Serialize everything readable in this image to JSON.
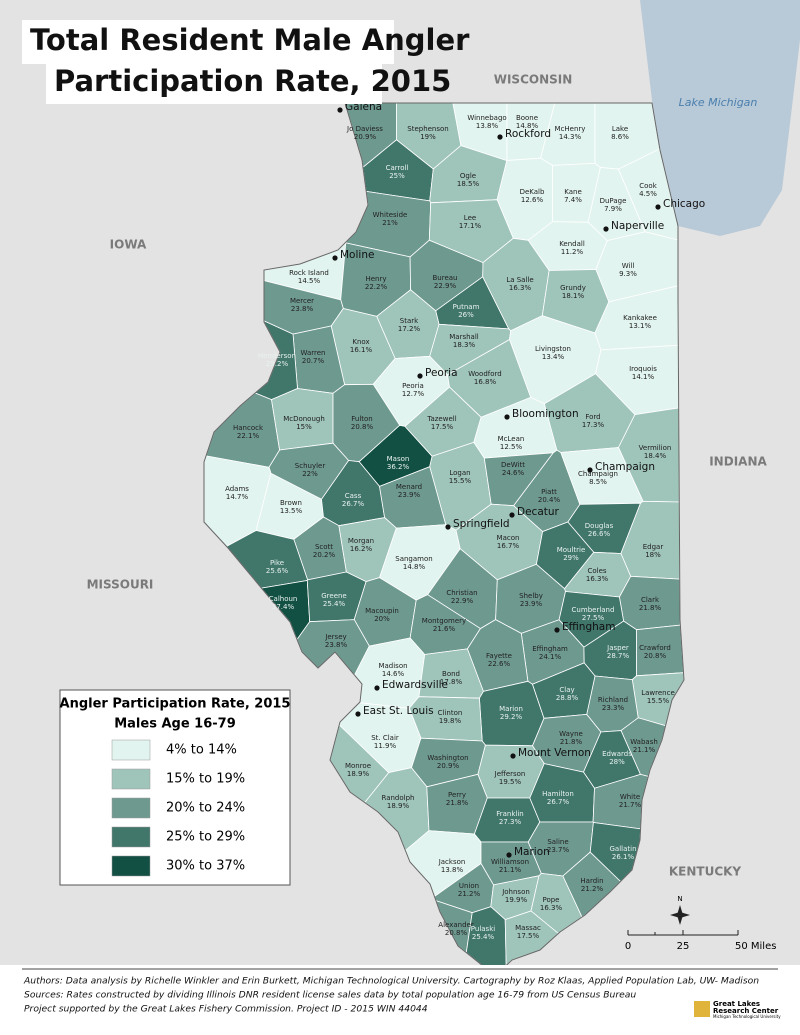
{
  "title": [
    "Total Resident Male Angler",
    "Participation Rate, 2015"
  ],
  "water": "Lake Michigan",
  "states": [
    "WISCONSIN",
    "IOWA",
    "INDIANA",
    "MISSOURI",
    "KENTUCKY"
  ],
  "legend": {
    "title": "Angler Participation Rate, 2015",
    "subtitle": "Males Age 16-79",
    "items": [
      {
        "label": "4% to 14%",
        "color": "#e2f4ef"
      },
      {
        "label": "15% to 19%",
        "color": "#9fc4ba"
      },
      {
        "label": "20% to 24%",
        "color": "#6e998f"
      },
      {
        "label": "25% to 29%",
        "color": "#41766b"
      },
      {
        "label": "30% to 37%",
        "color": "#135044"
      }
    ]
  },
  "counties": [
    {
      "name": "Jo Daviess",
      "rate": "20.9%"
    },
    {
      "name": "Stephenson",
      "rate": "19%"
    },
    {
      "name": "Winnebago",
      "rate": "13.8%"
    },
    {
      "name": "Boone",
      "rate": "14.8%"
    },
    {
      "name": "McHenry",
      "rate": "14.3%"
    },
    {
      "name": "Lake",
      "rate": "8.6%"
    },
    {
      "name": "Carroll",
      "rate": "25%"
    },
    {
      "name": "Ogle",
      "rate": "18.5%"
    },
    {
      "name": "DeKalb",
      "rate": "12.6%"
    },
    {
      "name": "Kane",
      "rate": "7.4%"
    },
    {
      "name": "DuPage",
      "rate": "7.9%"
    },
    {
      "name": "Cook",
      "rate": "4.5%"
    },
    {
      "name": "Whiteside",
      "rate": "21%"
    },
    {
      "name": "Lee",
      "rate": "17.1%"
    },
    {
      "name": "Kendall",
      "rate": "11.2%"
    },
    {
      "name": "Will",
      "rate": "9.3%"
    },
    {
      "name": "Rock Island",
      "rate": "14.5%"
    },
    {
      "name": "Henry",
      "rate": "22.2%"
    },
    {
      "name": "Bureau",
      "rate": "22.9%"
    },
    {
      "name": "La Salle",
      "rate": "16.3%"
    },
    {
      "name": "Grundy",
      "rate": "18.1%"
    },
    {
      "name": "Kankakee",
      "rate": "13.1%"
    },
    {
      "name": "Mercer",
      "rate": "23.8%"
    },
    {
      "name": "Putnam",
      "rate": "26%"
    },
    {
      "name": "Stark",
      "rate": "17.2%"
    },
    {
      "name": "Marshall",
      "rate": "18.3%"
    },
    {
      "name": "Knox",
      "rate": "16.1%"
    },
    {
      "name": "Warren",
      "rate": "20.7%"
    },
    {
      "name": "Henderson",
      "rate": "25.2%"
    },
    {
      "name": "Livingston",
      "rate": "13.4%"
    },
    {
      "name": "Iroquois",
      "rate": "14.1%"
    },
    {
      "name": "Peoria",
      "rate": "12.7%"
    },
    {
      "name": "Woodford",
      "rate": "16.8%"
    },
    {
      "name": "Hancock",
      "rate": "22.1%"
    },
    {
      "name": "McDonough",
      "rate": "15%"
    },
    {
      "name": "Fulton",
      "rate": "20.8%"
    },
    {
      "name": "Tazewell",
      "rate": "17.5%"
    },
    {
      "name": "McLean",
      "rate": "12.5%"
    },
    {
      "name": "Ford",
      "rate": "17.3%"
    },
    {
      "name": "Vermilion",
      "rate": "18.4%"
    },
    {
      "name": "Schuyler",
      "rate": "22%"
    },
    {
      "name": "Mason",
      "rate": "36.2%"
    },
    {
      "name": "Logan",
      "rate": "15.5%"
    },
    {
      "name": "DeWitt",
      "rate": "24.6%"
    },
    {
      "name": "Piatt",
      "rate": "20.4%"
    },
    {
      "name": "Champaign",
      "rate": "8.5%"
    },
    {
      "name": "Adams",
      "rate": "14.7%"
    },
    {
      "name": "Brown",
      "rate": "13.5%"
    },
    {
      "name": "Cass",
      "rate": "26.7%"
    },
    {
      "name": "Menard",
      "rate": "23.9%"
    },
    {
      "name": "Scott",
      "rate": "20.2%"
    },
    {
      "name": "Morgan",
      "rate": "16.2%"
    },
    {
      "name": "Sangamon",
      "rate": "14.8%"
    },
    {
      "name": "Macon",
      "rate": "16.7%"
    },
    {
      "name": "Moultrie",
      "rate": "29%"
    },
    {
      "name": "Douglas",
      "rate": "26.6%"
    },
    {
      "name": "Edgar",
      "rate": "18%"
    },
    {
      "name": "Pike",
      "rate": "25.6%"
    },
    {
      "name": "Christian",
      "rate": "22.9%"
    },
    {
      "name": "Coles",
      "rate": "16.3%"
    },
    {
      "name": "Shelby",
      "rate": "23.9%"
    },
    {
      "name": "Clark",
      "rate": "21.8%"
    },
    {
      "name": "Calhoun",
      "rate": "37.4%"
    },
    {
      "name": "Greene",
      "rate": "25.4%"
    },
    {
      "name": "Macoupin",
      "rate": "20%"
    },
    {
      "name": "Montgomery",
      "rate": "21.6%"
    },
    {
      "name": "Cumberland",
      "rate": "27.5%"
    },
    {
      "name": "Jersey",
      "rate": "23.8%"
    },
    {
      "name": "Effingham",
      "rate": "24.1%"
    },
    {
      "name": "Fayette",
      "rate": "22.6%"
    },
    {
      "name": "Jasper",
      "rate": "28.7%"
    },
    {
      "name": "Crawford",
      "rate": "20.8%"
    },
    {
      "name": "Madison",
      "rate": "14.6%"
    },
    {
      "name": "Bond",
      "rate": "17.8%"
    },
    {
      "name": "Lawrence",
      "rate": "15.5%"
    },
    {
      "name": "Richland",
      "rate": "23.3%"
    },
    {
      "name": "Marion",
      "rate": "29.2%"
    },
    {
      "name": "Clay",
      "rate": "28.8%"
    },
    {
      "name": "Clinton",
      "rate": "19.8%"
    },
    {
      "name": "St. Clair",
      "rate": "11.9%"
    },
    {
      "name": "Wayne",
      "rate": "21.8%"
    },
    {
      "name": "Wabash",
      "rate": "21.1%"
    },
    {
      "name": "Edwards",
      "rate": "28%"
    },
    {
      "name": "Monroe",
      "rate": "18.9%"
    },
    {
      "name": "Washington",
      "rate": "20.9%"
    },
    {
      "name": "Jefferson",
      "rate": "19.5%"
    },
    {
      "name": "Randolph",
      "rate": "18.9%"
    },
    {
      "name": "Perry",
      "rate": "21.8%"
    },
    {
      "name": "Franklin",
      "rate": "27.3%"
    },
    {
      "name": "Hamilton",
      "rate": "26.7%"
    },
    {
      "name": "White",
      "rate": "21.7%"
    },
    {
      "name": "Jackson",
      "rate": "13.8%"
    },
    {
      "name": "Williamson",
      "rate": "21.1%"
    },
    {
      "name": "Saline",
      "rate": "23.7%"
    },
    {
      "name": "Gallatin",
      "rate": "26.1%"
    },
    {
      "name": "Union",
      "rate": "21.2%"
    },
    {
      "name": "Johnson",
      "rate": "19.9%"
    },
    {
      "name": "Pope",
      "rate": "16.3%"
    },
    {
      "name": "Hardin",
      "rate": "21.2%"
    },
    {
      "name": "Alexander",
      "rate": "20.8%"
    },
    {
      "name": "Pulaski",
      "rate": "25.4%"
    },
    {
      "name": "Massac",
      "rate": "17.5%"
    }
  ],
  "cities": [
    "Galena",
    "Rockford",
    "Chicago",
    "Naperville",
    "Moline",
    "Peoria",
    "Bloomington",
    "Champaign",
    "Springfield",
    "Decatur",
    "Effingham",
    "Edwardsville",
    "East St. Louis",
    "Mount Vernon",
    "Marion"
  ],
  "north": "N",
  "scale": [
    "0",
    "25",
    "50 Miles"
  ],
  "credits": [
    "Authors: Data analysis by Richelle Winkler and Erin Burkett, Michigan Technological University. Cartography by Roz Klaas, Applied Population Lab, UW- Madison",
    "Sources: Rates constructed by dividing Illinois DNR resident license sales data by total population age 16-79 from US Census Bureau",
    "Project supported by the Great Lakes Fishery Commission. Project ID - 2015 WIN 44044"
  ],
  "logo": [
    "Great Lakes",
    "Research Center",
    "Michigan Technological University"
  ]
}
